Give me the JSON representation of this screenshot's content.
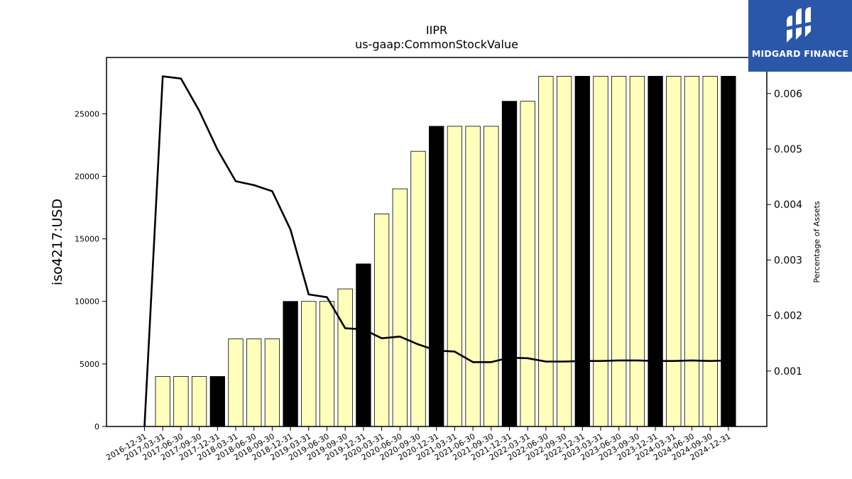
{
  "brand": {
    "name": "MIDGARD FINANCE",
    "bg_color": "#2b57a8"
  },
  "chart_data": {
    "type": "bar",
    "title": "IIPR",
    "subtitle": "us-gaap:CommonStockValue",
    "ylabel": "iso4217:USD",
    "y2label": "Percentage of Assets",
    "ylim": [
      0,
      29500
    ],
    "y2lim": [
      0.0,
      0.00665
    ],
    "yticks": [
      0,
      5000,
      10000,
      15000,
      20000,
      25000
    ],
    "y2ticks": [
      0.001,
      0.002,
      0.003,
      0.004,
      0.005,
      0.006
    ],
    "y2tick_labels": [
      "0.001",
      "0.002",
      "0.003",
      "0.004",
      "0.005",
      "0.006"
    ],
    "categories": [
      "2016-12-31",
      "2017-03-31",
      "2017-06-30",
      "2017-09-30",
      "2017-12-31",
      "2018-03-31",
      "2018-06-30",
      "2018-09-30",
      "2018-12-31",
      "2019-03-31",
      "2019-06-30",
      "2019-09-30",
      "2019-12-31",
      "2020-03-31",
      "2020-06-30",
      "2020-09-30",
      "2020-12-31",
      "2021-03-31",
      "2021-06-30",
      "2021-09-30",
      "2021-12-31",
      "2022-03-31",
      "2022-06-30",
      "2022-09-30",
      "2022-12-31",
      "2023-03-31",
      "2023-06-30",
      "2023-09-30",
      "2023-12-31",
      "2024-03-31",
      "2024-06-30",
      "2024-09-30",
      "2024-12-31"
    ],
    "values": [
      0,
      4000,
      4000,
      4000,
      4000,
      7000,
      7000,
      7000,
      10000,
      10000,
      10000,
      11000,
      13000,
      17000,
      19000,
      22000,
      24000,
      24000,
      24000,
      24000,
      26000,
      26000,
      28000,
      28000,
      28000,
      28000,
      28000,
      28000,
      28000,
      28000,
      28000,
      28000,
      28000
    ],
    "year_end": [
      true,
      false,
      false,
      false,
      true,
      false,
      false,
      false,
      true,
      false,
      false,
      false,
      true,
      false,
      false,
      false,
      true,
      false,
      false,
      false,
      true,
      false,
      false,
      false,
      true,
      false,
      false,
      false,
      true,
      false,
      false,
      false,
      true
    ],
    "line_series": {
      "name": "Percentage of Assets",
      "values": [
        0,
        0.00631,
        0.00627,
        0.00569,
        0.00499,
        0.00442,
        0.00435,
        0.00424,
        0.00355,
        0.00238,
        0.00233,
        0.00177,
        0.00175,
        0.00159,
        0.00162,
        0.00148,
        0.00137,
        0.00135,
        0.00116,
        0.00116,
        0.00124,
        0.00123,
        0.00117,
        0.00117,
        0.00118,
        0.00118,
        0.00119,
        0.00119,
        0.00118,
        0.00118,
        0.00119,
        0.00118,
        0.00119
      ]
    },
    "colors": {
      "bar_quarter": "#ffffbb",
      "bar_year": "#000000",
      "line": "#000000"
    },
    "grid": false
  }
}
